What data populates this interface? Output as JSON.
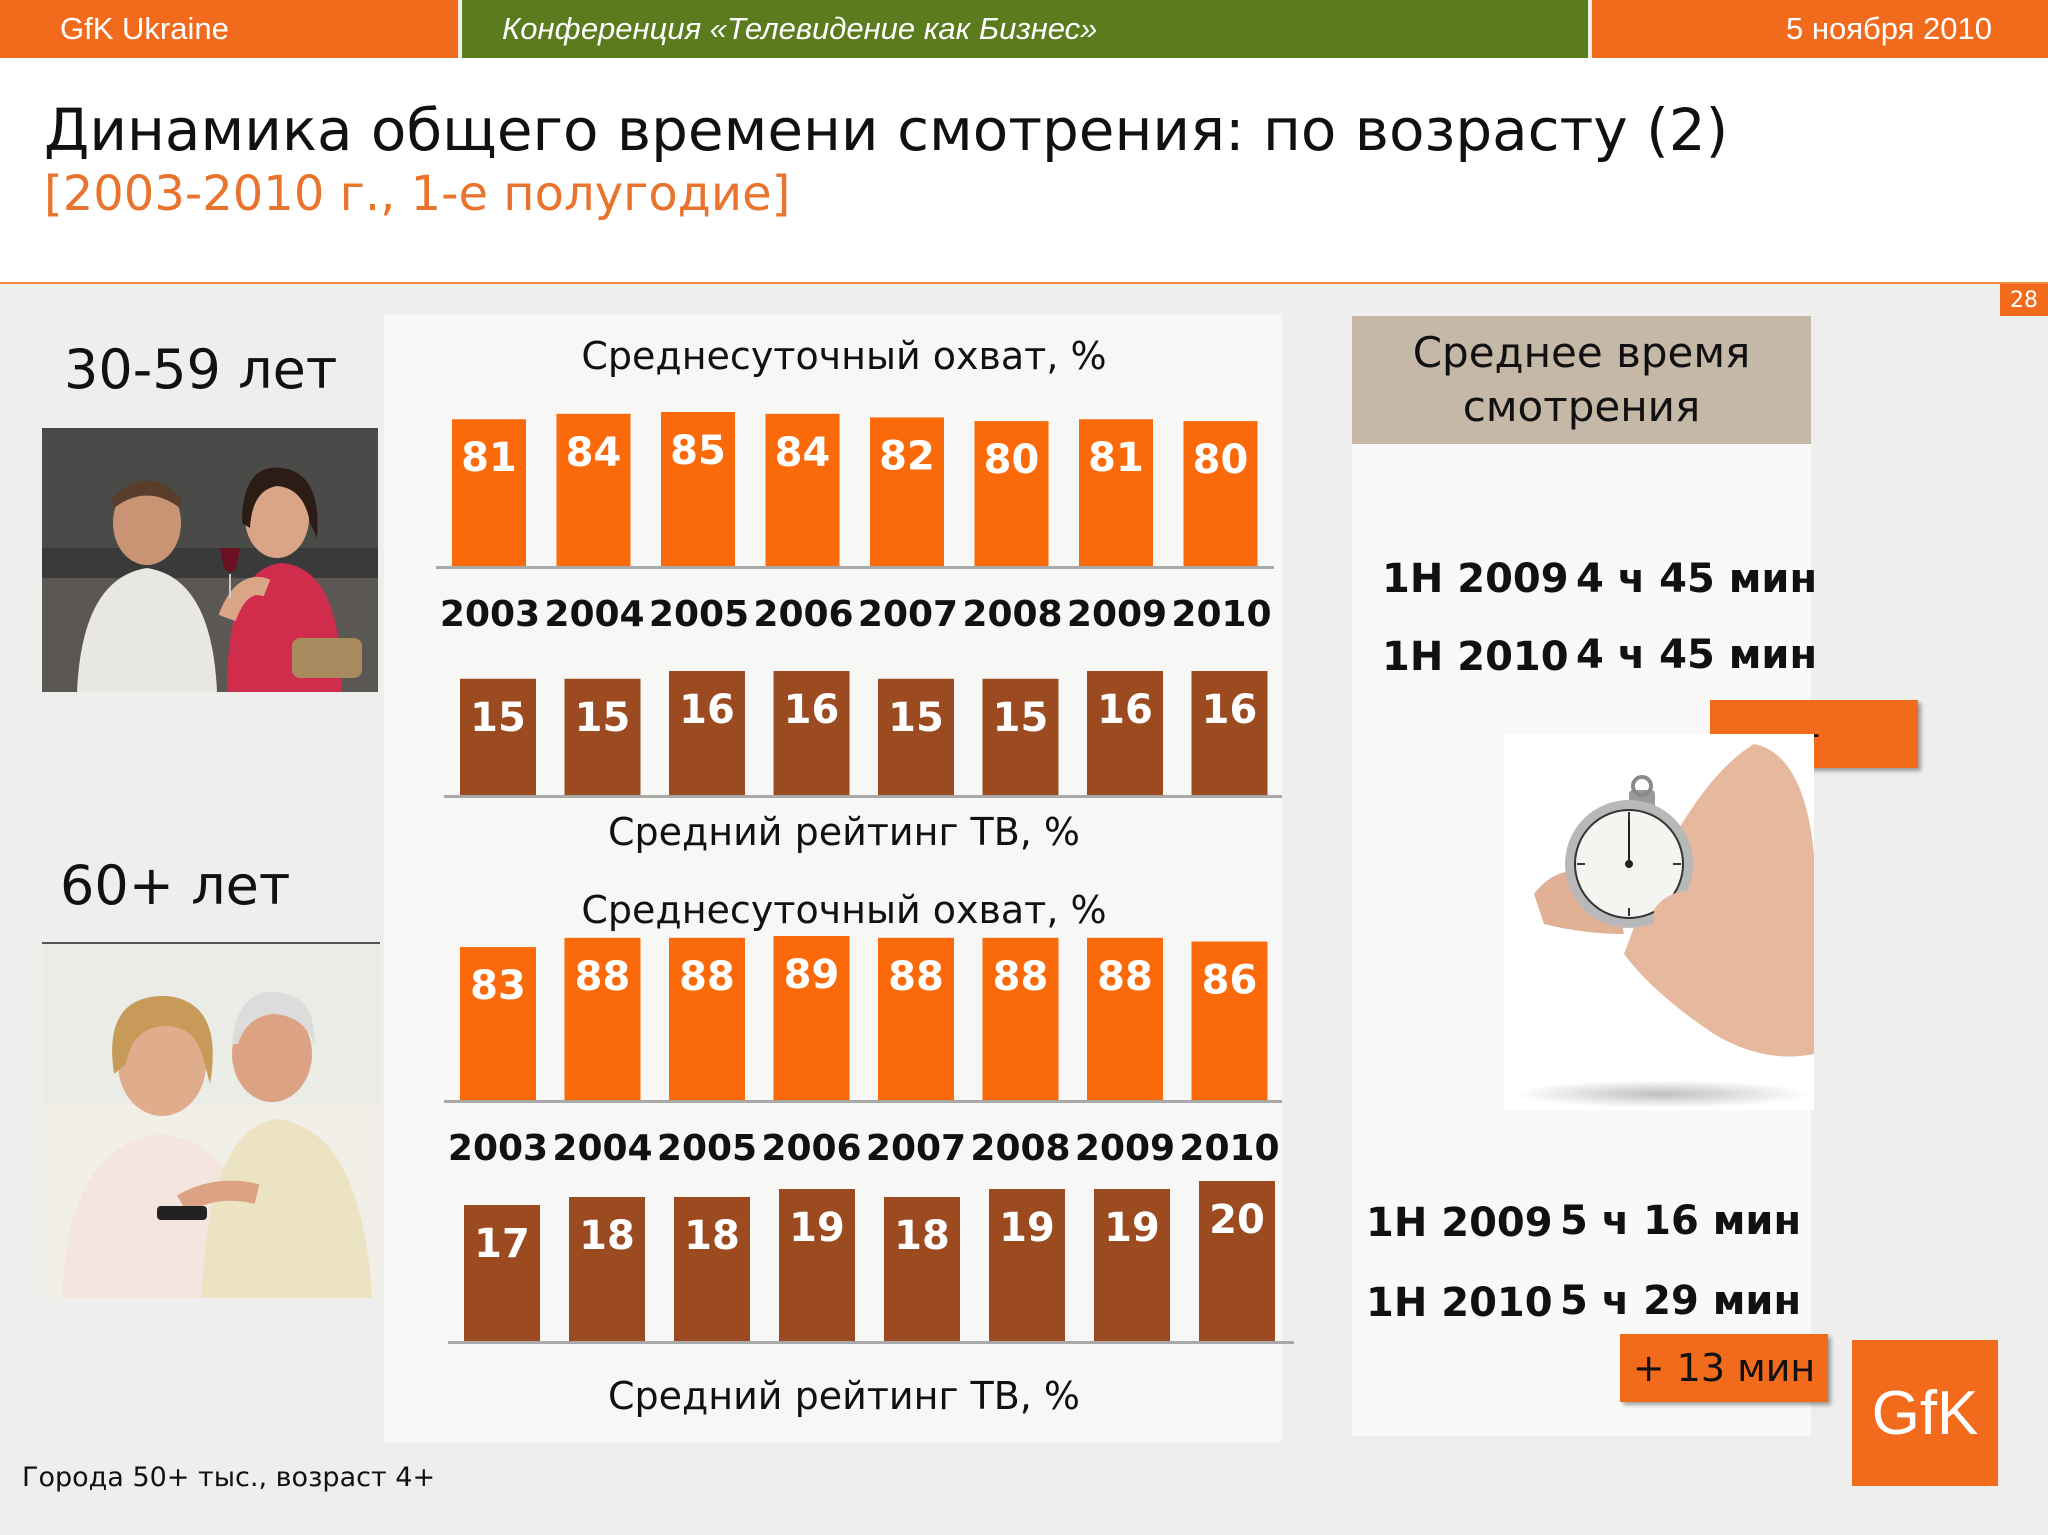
{
  "topbar": {
    "left": "GfK Ukraine",
    "center": "Конференция «Телевидение  как  Бизнес»",
    "right": "5 ноября 2010"
  },
  "title": "Динамика общего времени смотрения: по возрасту (2)",
  "subtitle": "[2003-2010 г., 1-е полугодие]",
  "page_number": "28",
  "groups": [
    {
      "label": "30-59 лет"
    },
    {
      "label": "60+ лет"
    }
  ],
  "chart_titles": {
    "reach_1": "Среднесуточный охват, %",
    "rating_1": "Средний рейтинг ТВ, %",
    "reach_2": "Среднесуточный охват, %",
    "rating_2": "Средний рейтинг ТВ, %"
  },
  "chart_data": [
    {
      "type": "bar",
      "title": "Среднесуточный охват, %",
      "group": "30-59 лет",
      "categories": [
        "2003",
        "2004",
        "2005",
        "2006",
        "2007",
        "2008",
        "2009",
        "2010"
      ],
      "values": [
        81,
        84,
        85,
        84,
        82,
        80,
        81,
        80
      ],
      "color": "#fb6a0a"
    },
    {
      "type": "bar",
      "title": "Средний рейтинг ТВ, %",
      "group": "30-59 лет",
      "categories": [
        "2003",
        "2004",
        "2005",
        "2006",
        "2007",
        "2008",
        "2009",
        "2010"
      ],
      "values": [
        15,
        15,
        16,
        16,
        15,
        15,
        16,
        16
      ],
      "color": "#9c4b21"
    },
    {
      "type": "bar",
      "title": "Среднесуточный охват, %",
      "group": "60+ лет",
      "categories": [
        "2003",
        "2004",
        "2005",
        "2006",
        "2007",
        "2008",
        "2009",
        "2010"
      ],
      "values": [
        83,
        88,
        88,
        89,
        88,
        88,
        88,
        86
      ],
      "color": "#fb6a0a"
    },
    {
      "type": "bar",
      "title": "Средний рейтинг ТВ, %",
      "group": "60+ лет",
      "categories": [
        "2003",
        "2004",
        "2005",
        "2006",
        "2007",
        "2008",
        "2009",
        "2010"
      ],
      "values": [
        17,
        18,
        18,
        19,
        18,
        19,
        19,
        20
      ],
      "color": "#9c4b21"
    }
  ],
  "right_panel": {
    "header_line1": "Среднее время",
    "header_line2": "смотрения",
    "group1": [
      {
        "period": "1H 2009",
        "time": "4 ч 45 мин"
      },
      {
        "period": "1H 2010",
        "time": "4 ч 45 мин"
      }
    ],
    "group1_change": "-",
    "group2": [
      {
        "period": "1H 2009",
        "time": "5 ч 16 мин"
      },
      {
        "period": "1H 2010",
        "time": "5 ч 29 мин"
      }
    ],
    "group2_change": "+ 13 мин"
  },
  "logo_text": "GfK",
  "footnote": "Города 50+ тыс., возраст 4+",
  "colors": {
    "orange": "#f26b1d",
    "bar_orange": "#fb6a0a",
    "bar_brown": "#9c4b21",
    "green": "#5a7b1e",
    "subtitle": "#e8742e"
  }
}
